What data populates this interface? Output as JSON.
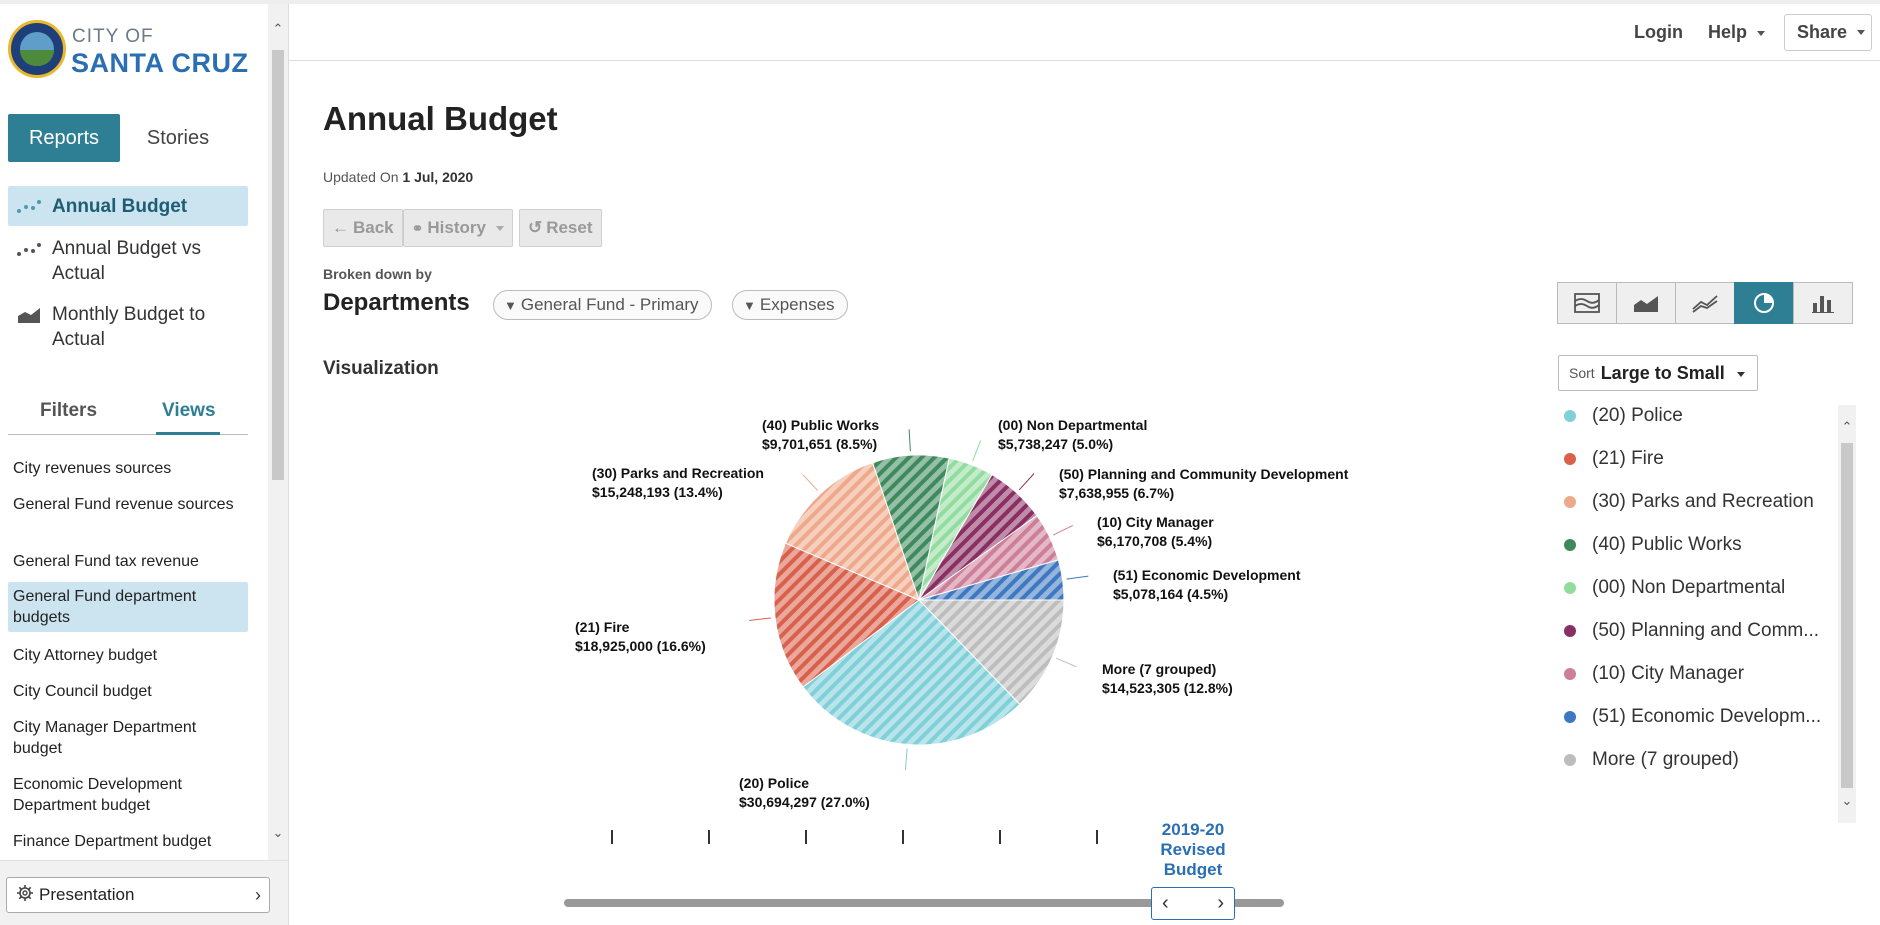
{
  "brand": {
    "top": "CITY OF",
    "main": "SANTA CRUZ"
  },
  "header": {
    "login": "Login",
    "help": "Help",
    "share": "Share"
  },
  "sidebar": {
    "tabs": {
      "reports": "Reports",
      "stories": "Stories"
    },
    "reports": [
      {
        "label": "Annual Budget",
        "active": true
      },
      {
        "label": "Annual Budget vs Actual",
        "active": false
      },
      {
        "label": "Monthly Budget to Actual",
        "active": false
      }
    ],
    "subtabs": {
      "filters": "Filters",
      "views": "Views"
    },
    "views": [
      "City revenues sources",
      "General Fund revenue sources",
      "General Fund tax revenue",
      "General Fund department budgets",
      "City Attorney budget",
      "City Council budget",
      "City Manager Department budget",
      "Economic Development Department budget",
      "Finance Department budget"
    ],
    "presentation": "Presentation"
  },
  "main": {
    "title": "Annual Budget",
    "updated_prefix": "Updated On",
    "updated_date": "1 Jul, 2020",
    "history": {
      "back": "Back",
      "history": "History",
      "reset": "Reset"
    },
    "broken_down_by": "Broken down by",
    "dimension": "Departments",
    "filters": [
      "General Fund - Primary",
      "Expenses"
    ],
    "visualization_label": "Visualization",
    "sort": {
      "prefix": "Sort",
      "value": "Large to Small"
    },
    "timeline": {
      "label_lines": [
        "2019-20",
        "Revised",
        "Budget"
      ]
    }
  },
  "legend": [
    {
      "label": "(20) Police",
      "color": "#7fd0d8"
    },
    {
      "label": "(21) Fire",
      "color": "#d9604a"
    },
    {
      "label": "(30) Parks and Recreation",
      "color": "#eea88a"
    },
    {
      "label": "(40) Public Works",
      "color": "#3e8a5c"
    },
    {
      "label": "(00) Non Departmental",
      "color": "#93dca0"
    },
    {
      "label": "(50) Planning and Comm...",
      "color": "#8a2f63"
    },
    {
      "label": "(10) City Manager",
      "color": "#cd7e98"
    },
    {
      "label": "(51) Economic Developm...",
      "color": "#3e78c0"
    },
    {
      "label": "More (7 grouped)",
      "color": "#bdbdbd"
    }
  ],
  "chart_data": {
    "type": "pie",
    "slices": [
      {
        "name": "(20) Police",
        "value": 30694297,
        "label_value": "$30,694,297 (27.0%)",
        "color": "#7fd0d8"
      },
      {
        "name": "(21) Fire",
        "value": 18925000,
        "label_value": "$18,925,000 (16.6%)",
        "color": "#d9604a"
      },
      {
        "name": "(30) Parks and Recreation",
        "value": 15248193,
        "label_value": "$15,248,193 (13.4%)",
        "color": "#eea88a"
      },
      {
        "name": "(40) Public Works",
        "value": 9701651,
        "label_value": "$9,701,651 (8.5%)",
        "color": "#3e8a5c"
      },
      {
        "name": "(00) Non Departmental",
        "value": 5738247,
        "label_value": "$5,738,247 (5.0%)",
        "color": "#93dca0"
      },
      {
        "name": "(50) Planning and Community Development",
        "value": 7638955,
        "label_value": "$7,638,955 (6.7%)",
        "color": "#8a2f63"
      },
      {
        "name": "(10) City Manager",
        "value": 6170708,
        "label_value": "$6,170,708 (5.4%)",
        "color": "#cd7e98"
      },
      {
        "name": "(51) Economic Development",
        "value": 5078164,
        "label_value": "$5,078,164 (4.5%)",
        "color": "#3e78c0"
      },
      {
        "name": "More (7 grouped)",
        "value": 14523305,
        "label_value": "$14,523,305 (12.8%)",
        "color": "#bdbdbd"
      }
    ]
  }
}
